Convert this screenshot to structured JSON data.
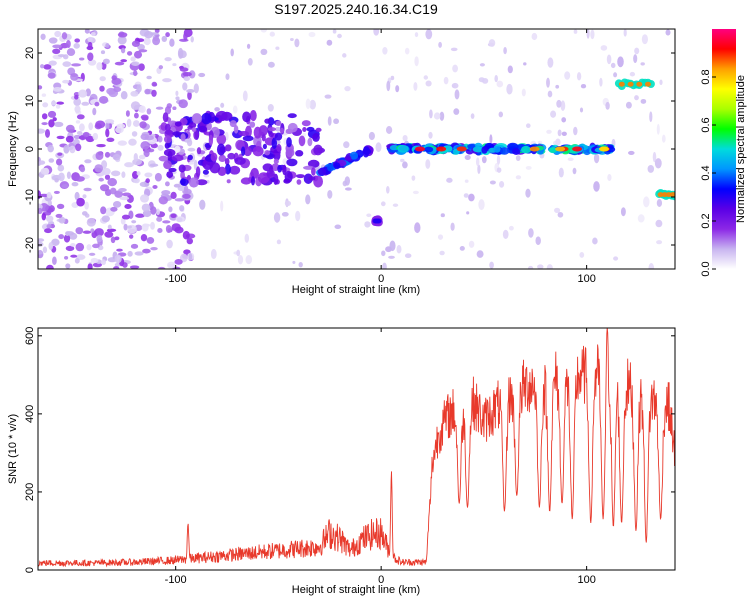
{
  "title": "S197.2025.240.16.34.C19",
  "chart_data": [
    {
      "type": "heatmap",
      "name": "spectrogram",
      "xlabel": "Height of straight line (km)",
      "ylabel": "Frequency (Hz)",
      "xlim": [
        -167,
        143
      ],
      "ylim": [
        -25,
        25
      ],
      "xticks": [
        -100,
        0,
        100
      ],
      "yticks": [
        -20,
        -10,
        0,
        10,
        20
      ],
      "colorbar": {
        "label": "Normalized spectral amplitude",
        "range": [
          0,
          1
        ],
        "ticks": [
          0.0,
          0.2,
          0.4,
          0.6,
          0.8
        ],
        "colormap": [
          "#ffffff",
          "#c8b4f0",
          "#8c28e6",
          "#5a00e6",
          "#0000ff",
          "#0096ff",
          "#00dcdc",
          "#00ff00",
          "#aaff00",
          "#ffff00",
          "#ffa000",
          "#ff0000",
          "#ff0080"
        ]
      },
      "features": [
        {
          "label": "noise region",
          "x": [
            -167,
            -100
          ],
          "freq": [
            -25,
            25
          ],
          "amp": 0.08
        },
        {
          "label": "broadband cluster",
          "x": [
            -105,
            -30
          ],
          "freq": [
            -7,
            7
          ],
          "amp": 0.2
        },
        {
          "label": "dot track",
          "x": [
            -30,
            -5
          ],
          "freq": [
            -5,
            0
          ],
          "amp": 0.35
        },
        {
          "label": "line near 0 Hz",
          "x": [
            5,
            112
          ],
          "freq": 0,
          "amp": 0.45
        },
        {
          "label": "feature -15 Hz",
          "x": [
            -3,
            -1
          ],
          "freq": -15,
          "amp": 0.3
        },
        {
          "label": "peak +13 Hz",
          "x": [
            115,
            132
          ],
          "freq": 13.5,
          "amp": 0.85
        },
        {
          "label": "peak -9 Hz",
          "x": [
            135,
            143
          ],
          "freq": -9.5,
          "amp": 0.85
        }
      ]
    },
    {
      "type": "line",
      "name": "snr",
      "xlabel": "Height of straight line (km)",
      "ylabel": "SNR (10 * v/v)",
      "xlim": [
        -167,
        143
      ],
      "ylim": [
        0,
        620
      ],
      "xticks": [
        -100,
        0,
        100
      ],
      "yticks": [
        0,
        200,
        400,
        600
      ],
      "color": "#e8392b",
      "series": [
        {
          "name": "SNR",
          "x": [
            -167,
            -140,
            -120,
            -100,
            -90,
            -80,
            -70,
            -60,
            -50,
            -40,
            -30,
            -25,
            -20,
            -15,
            -10,
            -5,
            0,
            5,
            10,
            15,
            22,
            25,
            28,
            32,
            38,
            45,
            50,
            55,
            60,
            65,
            70,
            75,
            80,
            85,
            90,
            95,
            100,
            105,
            110,
            115,
            120,
            125,
            130,
            135,
            140,
            143
          ],
          "y": [
            18,
            18,
            20,
            25,
            30,
            35,
            40,
            45,
            50,
            55,
            60,
            95,
            80,
            50,
            75,
            90,
            95,
            35,
            20,
            20,
            20,
            280,
            350,
            390,
            420,
            430,
            380,
            410,
            440,
            450,
            470,
            480,
            470,
            490,
            480,
            495,
            500,
            505,
            510,
            480,
            470,
            450,
            440,
            430,
            420,
            300
          ],
          "dips": [
            {
              "x": 38,
              "y": 170
            },
            {
              "x": 42,
              "y": 160
            },
            {
              "x": 60,
              "y": 150
            },
            {
              "x": 66,
              "y": 190
            },
            {
              "x": 77,
              "y": 160
            },
            {
              "x": 82,
              "y": 150
            },
            {
              "x": 88,
              "y": 170
            },
            {
              "x": 93,
              "y": 130
            },
            {
              "x": 102,
              "y": 120
            },
            {
              "x": 108,
              "y": 130
            },
            {
              "x": 113,
              "y": 110
            },
            {
              "x": 117,
              "y": 120
            },
            {
              "x": 124,
              "y": 100
            },
            {
              "x": 129,
              "y": 70
            },
            {
              "x": 136,
              "y": 130
            }
          ],
          "spikes": [
            {
              "x": -94,
              "y": 120
            },
            {
              "x": 5,
              "y": 255
            },
            {
              "x": 110,
              "y": 620
            }
          ]
        }
      ]
    }
  ]
}
